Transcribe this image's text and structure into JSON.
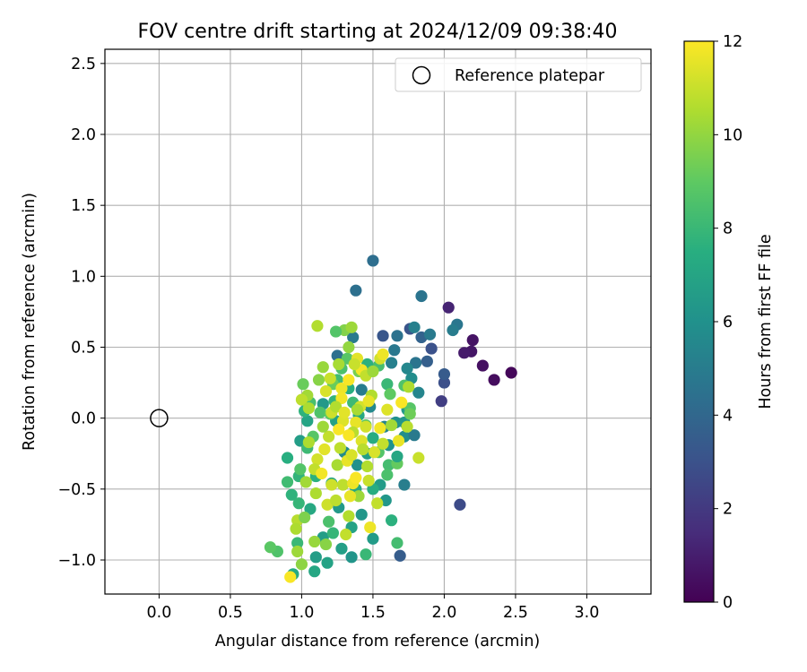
{
  "chart_data": {
    "type": "scatter",
    "title": "FOV centre drift starting at 2024/12/09 09:38:40",
    "xlabel": "Angular distance from reference (arcmin)",
    "ylabel": "Rotation from reference (arcmin)",
    "xlim": [
      -0.38,
      3.45
    ],
    "ylim": [
      -1.24,
      2.6
    ],
    "x_ticks": [
      0.0,
      0.5,
      1.0,
      1.5,
      2.0,
      2.5,
      3.0
    ],
    "x_tick_labels": [
      "0.0",
      "0.5",
      "1.0",
      "1.5",
      "2.0",
      "2.5",
      "3.0"
    ],
    "y_ticks": [
      -1.0,
      -0.5,
      0.0,
      0.5,
      1.0,
      1.5,
      2.0,
      2.5
    ],
    "y_tick_labels": [
      "−1.0",
      "−0.5",
      "0.0",
      "0.5",
      "1.0",
      "1.5",
      "2.0",
      "2.5"
    ],
    "grid": true,
    "legend": {
      "position": "upper right",
      "entries": [
        "Reference platepar"
      ]
    },
    "reference_point": {
      "x": 0.0,
      "y": 0.0,
      "marker": "open-circle"
    },
    "colorbar": {
      "label": "Hours from first FF file",
      "colormap": "viridis",
      "min": 0,
      "max": 12,
      "ticks": [
        0,
        2,
        4,
        6,
        8,
        10,
        12
      ],
      "tick_labels": [
        "0",
        "2",
        "4",
        "6",
        "8",
        "10",
        "12"
      ]
    },
    "points": [
      {
        "x": 2.47,
        "y": 0.32,
        "h": 0.2
      },
      {
        "x": 2.35,
        "y": 0.27,
        "h": 0.4
      },
      {
        "x": 2.27,
        "y": 0.37,
        "h": 0.5
      },
      {
        "x": 2.2,
        "y": 0.55,
        "h": 0.6
      },
      {
        "x": 2.19,
        "y": 0.47,
        "h": 0.7
      },
      {
        "x": 2.14,
        "y": 0.46,
        "h": 0.9
      },
      {
        "x": 2.03,
        "y": 0.78,
        "h": 1.2
      },
      {
        "x": 1.98,
        "y": 0.12,
        "h": 2.2
      },
      {
        "x": 2.11,
        "y": -0.61,
        "h": 2.7
      },
      {
        "x": 2.0,
        "y": 0.25,
        "h": 2.9
      },
      {
        "x": 1.91,
        "y": 0.49,
        "h": 3.0
      },
      {
        "x": 1.76,
        "y": 0.63,
        "h": 3.1
      },
      {
        "x": 1.57,
        "y": 0.58,
        "h": 3.2
      },
      {
        "x": 1.69,
        "y": -0.97,
        "h": 3.5
      },
      {
        "x": 2.0,
        "y": 0.31,
        "h": 3.4
      },
      {
        "x": 1.88,
        "y": 0.4,
        "h": 3.6
      },
      {
        "x": 1.84,
        "y": 0.57,
        "h": 3.8
      },
      {
        "x": 1.5,
        "y": 1.11,
        "h": 4.3
      },
      {
        "x": 1.38,
        "y": 0.9,
        "h": 4.4
      },
      {
        "x": 1.84,
        "y": 0.86,
        "h": 4.6
      },
      {
        "x": 2.09,
        "y": 0.66,
        "h": 4.7
      },
      {
        "x": 2.06,
        "y": 0.62,
        "h": 5.0
      },
      {
        "x": 1.9,
        "y": 0.59,
        "h": 4.9
      },
      {
        "x": 1.79,
        "y": 0.64,
        "h": 5.2
      },
      {
        "x": 1.67,
        "y": 0.58,
        "h": 4.5
      },
      {
        "x": 1.65,
        "y": 0.48,
        "h": 4.8
      },
      {
        "x": 1.63,
        "y": 0.39,
        "h": 5.2
      },
      {
        "x": 1.77,
        "y": 0.28,
        "h": 5.8
      },
      {
        "x": 1.8,
        "y": 0.39,
        "h": 4.6
      },
      {
        "x": 1.74,
        "y": 0.35,
        "h": 5.5
      },
      {
        "x": 1.36,
        "y": 0.57,
        "h": 4.9
      },
      {
        "x": 1.25,
        "y": 0.44,
        "h": 4.4
      },
      {
        "x": 1.42,
        "y": 0.2,
        "h": 5.0
      },
      {
        "x": 1.48,
        "y": 0.08,
        "h": 5.6
      },
      {
        "x": 1.58,
        "y": -0.06,
        "h": 5.3
      },
      {
        "x": 1.66,
        "y": -0.03,
        "h": 6.0
      },
      {
        "x": 1.72,
        "y": -0.13,
        "h": 5.8
      },
      {
        "x": 1.79,
        "y": -0.12,
        "h": 4.9
      },
      {
        "x": 1.72,
        "y": -0.03,
        "h": 6.2
      },
      {
        "x": 1.82,
        "y": 0.18,
        "h": 5.4
      },
      {
        "x": 1.74,
        "y": 0.06,
        "h": 6.4
      },
      {
        "x": 1.61,
        "y": -0.19,
        "h": 6.1
      },
      {
        "x": 1.55,
        "y": -0.47,
        "h": 6.5
      },
      {
        "x": 1.72,
        "y": -0.47,
        "h": 5.1
      },
      {
        "x": 1.59,
        "y": -0.58,
        "h": 6.3
      },
      {
        "x": 1.46,
        "y": -0.25,
        "h": 6.7
      },
      {
        "x": 1.39,
        "y": -0.33,
        "h": 6.0
      },
      {
        "x": 1.3,
        "y": -0.24,
        "h": 5.7
      },
      {
        "x": 1.24,
        "y": -0.02,
        "h": 6.8
      },
      {
        "x": 1.15,
        "y": 0.1,
        "h": 6.4
      },
      {
        "x": 1.04,
        "y": -0.02,
        "h": 7.0
      },
      {
        "x": 0.99,
        "y": -0.16,
        "h": 6.6
      },
      {
        "x": 1.35,
        "y": -0.77,
        "h": 6.9
      },
      {
        "x": 1.5,
        "y": -0.85,
        "h": 6.5
      },
      {
        "x": 1.35,
        "y": -0.98,
        "h": 6.2
      },
      {
        "x": 1.28,
        "y": -0.92,
        "h": 6.7
      },
      {
        "x": 1.09,
        "y": -1.08,
        "h": 7.1
      },
      {
        "x": 1.18,
        "y": -1.02,
        "h": 6.9
      },
      {
        "x": 1.1,
        "y": -0.98,
        "h": 6.6
      },
      {
        "x": 0.94,
        "y": -1.1,
        "h": 7.3
      },
      {
        "x": 1.15,
        "y": -0.84,
        "h": 6.6
      },
      {
        "x": 1.06,
        "y": -0.64,
        "h": 7.2
      },
      {
        "x": 1.26,
        "y": -0.63,
        "h": 6.4
      },
      {
        "x": 1.42,
        "y": -0.68,
        "h": 6.3
      },
      {
        "x": 1.5,
        "y": -0.5,
        "h": 7.4
      },
      {
        "x": 1.38,
        "y": -0.5,
        "h": 7.1
      },
      {
        "x": 1.21,
        "y": -0.46,
        "h": 7.0
      },
      {
        "x": 1.1,
        "y": -0.41,
        "h": 7.6
      },
      {
        "x": 0.98,
        "y": -0.41,
        "h": 7.8
      },
      {
        "x": 0.93,
        "y": -0.54,
        "h": 7.7
      },
      {
        "x": 0.98,
        "y": -0.6,
        "h": 7.9
      },
      {
        "x": 1.63,
        "y": -0.72,
        "h": 7.6
      },
      {
        "x": 1.67,
        "y": -0.88,
        "h": 8.3
      },
      {
        "x": 1.45,
        "y": -0.96,
        "h": 8.0
      },
      {
        "x": 1.22,
        "y": -0.81,
        "h": 7.9
      },
      {
        "x": 1.19,
        "y": -0.73,
        "h": 8.5
      },
      {
        "x": 0.97,
        "y": -0.88,
        "h": 8.0
      },
      {
        "x": 0.83,
        "y": -0.94,
        "h": 8.6
      },
      {
        "x": 0.78,
        "y": -0.91,
        "h": 8.9
      },
      {
        "x": 0.9,
        "y": -0.28,
        "h": 7.5
      },
      {
        "x": 0.9,
        "y": -0.45,
        "h": 8.2
      },
      {
        "x": 0.99,
        "y": -0.36,
        "h": 8.7
      },
      {
        "x": 1.04,
        "y": -0.21,
        "h": 8.1
      },
      {
        "x": 1.08,
        "y": -0.13,
        "h": 8.8
      },
      {
        "x": 1.06,
        "y": 0.11,
        "h": 8.4
      },
      {
        "x": 1.02,
        "y": 0.05,
        "h": 7.7
      },
      {
        "x": 1.13,
        "y": 0.04,
        "h": 8.6
      },
      {
        "x": 1.2,
        "y": 0.03,
        "h": 9.0
      },
      {
        "x": 1.23,
        "y": 0.12,
        "h": 7.8
      },
      {
        "x": 1.25,
        "y": 0.27,
        "h": 8.2
      },
      {
        "x": 1.28,
        "y": 0.35,
        "h": 8.5
      },
      {
        "x": 1.22,
        "y": 0.24,
        "h": 9.2
      },
      {
        "x": 1.33,
        "y": 0.21,
        "h": 7.5
      },
      {
        "x": 1.36,
        "y": 0.11,
        "h": 8.1
      },
      {
        "x": 1.4,
        "y": 0.02,
        "h": 7.2
      },
      {
        "x": 1.45,
        "y": -0.05,
        "h": 8.9
      },
      {
        "x": 1.5,
        "y": -0.14,
        "h": 7.4
      },
      {
        "x": 1.54,
        "y": -0.24,
        "h": 8.7
      },
      {
        "x": 1.61,
        "y": -0.33,
        "h": 8.3
      },
      {
        "x": 1.67,
        "y": -0.32,
        "h": 9.1
      },
      {
        "x": 1.6,
        "y": -0.4,
        "h": 8.5
      },
      {
        "x": 1.67,
        "y": -0.27,
        "h": 7.1
      },
      {
        "x": 1.76,
        "y": 0.07,
        "h": 8.8
      },
      {
        "x": 1.76,
        "y": 0.03,
        "h": 9.3
      },
      {
        "x": 1.72,
        "y": 0.23,
        "h": 8.6
      },
      {
        "x": 1.6,
        "y": 0.24,
        "h": 8.0
      },
      {
        "x": 1.62,
        "y": 0.17,
        "h": 9.0
      },
      {
        "x": 1.54,
        "y": 0.37,
        "h": 8.4
      },
      {
        "x": 1.46,
        "y": 0.38,
        "h": 7.6
      },
      {
        "x": 1.4,
        "y": 0.33,
        "h": 9.5
      },
      {
        "x": 1.32,
        "y": 0.42,
        "h": 8.8
      },
      {
        "x": 1.3,
        "y": 0.62,
        "h": 9.7
      },
      {
        "x": 1.24,
        "y": 0.61,
        "h": 8.7
      },
      {
        "x": 1.11,
        "y": 0.65,
        "h": 10.6
      },
      {
        "x": 1.35,
        "y": 0.64,
        "h": 10.2
      },
      {
        "x": 1.33,
        "y": 0.5,
        "h": 10.0
      },
      {
        "x": 1.26,
        "y": 0.38,
        "h": 10.4
      },
      {
        "x": 1.15,
        "y": 0.36,
        "h": 10.1
      },
      {
        "x": 1.12,
        "y": 0.27,
        "h": 9.8
      },
      {
        "x": 1.04,
        "y": 0.16,
        "h": 10.3
      },
      {
        "x": 1.01,
        "y": 0.24,
        "h": 9.2
      },
      {
        "x": 1.0,
        "y": 0.13,
        "h": 10.8
      },
      {
        "x": 1.05,
        "y": 0.07,
        "h": 10.5
      },
      {
        "x": 1.17,
        "y": 0.19,
        "h": 11.3
      },
      {
        "x": 1.21,
        "y": 0.04,
        "h": 11.1
      },
      {
        "x": 1.28,
        "y": 0.21,
        "h": 11.7
      },
      {
        "x": 1.33,
        "y": 0.27,
        "h": 11.9
      },
      {
        "x": 1.39,
        "y": 0.42,
        "h": 11.5
      },
      {
        "x": 1.42,
        "y": 0.34,
        "h": 11.8
      },
      {
        "x": 1.45,
        "y": 0.3,
        "h": 10.9
      },
      {
        "x": 1.49,
        "y": 0.16,
        "h": 10.6
      },
      {
        "x": 1.41,
        "y": 0.08,
        "h": 11.2
      },
      {
        "x": 1.38,
        "y": -0.03,
        "h": 11.6
      },
      {
        "x": 1.36,
        "y": -0.1,
        "h": 10.7
      },
      {
        "x": 1.29,
        "y": -0.02,
        "h": 11.4
      },
      {
        "x": 1.26,
        "y": -0.08,
        "h": 11.9
      },
      {
        "x": 1.19,
        "y": -0.13,
        "h": 10.9
      },
      {
        "x": 1.16,
        "y": -0.22,
        "h": 11.5
      },
      {
        "x": 1.11,
        "y": -0.29,
        "h": 11.2
      },
      {
        "x": 1.05,
        "y": -0.17,
        "h": 10.5
      },
      {
        "x": 1.09,
        "y": -0.36,
        "h": 10.9
      },
      {
        "x": 1.14,
        "y": -0.39,
        "h": 11.8
      },
      {
        "x": 1.21,
        "y": -0.47,
        "h": 11.1
      },
      {
        "x": 1.25,
        "y": -0.33,
        "h": 10.4
      },
      {
        "x": 1.32,
        "y": -0.3,
        "h": 11.6
      },
      {
        "x": 1.29,
        "y": -0.47,
        "h": 10.8
      },
      {
        "x": 1.36,
        "y": -0.46,
        "h": 11.7
      },
      {
        "x": 1.4,
        "y": -0.55,
        "h": 10.2
      },
      {
        "x": 1.47,
        "y": -0.44,
        "h": 11.0
      },
      {
        "x": 1.46,
        "y": -0.34,
        "h": 10.6
      },
      {
        "x": 1.51,
        "y": -0.24,
        "h": 11.3
      },
      {
        "x": 1.57,
        "y": -0.18,
        "h": 10.9
      },
      {
        "x": 1.55,
        "y": -0.07,
        "h": 11.8
      },
      {
        "x": 1.6,
        "y": 0.06,
        "h": 11.4
      },
      {
        "x": 1.63,
        "y": -0.05,
        "h": 10.3
      },
      {
        "x": 1.68,
        "y": -0.16,
        "h": 11.6
      },
      {
        "x": 1.74,
        "y": -0.06,
        "h": 10.7
      },
      {
        "x": 1.7,
        "y": 0.11,
        "h": 11.9
      },
      {
        "x": 1.75,
        "y": 0.22,
        "h": 10.5
      },
      {
        "x": 1.55,
        "y": 0.42,
        "h": 11.2
      },
      {
        "x": 1.57,
        "y": 0.45,
        "h": 11.7
      },
      {
        "x": 1.5,
        "y": 0.33,
        "h": 10.2
      },
      {
        "x": 1.37,
        "y": 0.38,
        "h": 11.0
      },
      {
        "x": 1.28,
        "y": 0.14,
        "h": 11.8
      },
      {
        "x": 1.24,
        "y": 0.08,
        "h": 10.6
      },
      {
        "x": 1.3,
        "y": 0.04,
        "h": 11.5
      },
      {
        "x": 1.33,
        "y": -0.12,
        "h": 11.9
      },
      {
        "x": 1.27,
        "y": -0.21,
        "h": 10.8
      },
      {
        "x": 1.42,
        "y": -0.16,
        "h": 11.4
      },
      {
        "x": 1.45,
        "y": -0.06,
        "h": 11.2
      },
      {
        "x": 1.39,
        "y": 0.06,
        "h": 10.4
      },
      {
        "x": 1.03,
        "y": -0.45,
        "h": 10.3
      },
      {
        "x": 0.97,
        "y": -0.72,
        "h": 10.7
      },
      {
        "x": 0.96,
        "y": -0.78,
        "h": 10.5
      },
      {
        "x": 1.02,
        "y": -0.7,
        "h": 9.6
      },
      {
        "x": 1.09,
        "y": -0.87,
        "h": 10.1
      },
      {
        "x": 1.17,
        "y": -0.89,
        "h": 9.8
      },
      {
        "x": 1.18,
        "y": -0.61,
        "h": 11.1
      },
      {
        "x": 1.24,
        "y": -0.58,
        "h": 10.8
      },
      {
        "x": 1.33,
        "y": -0.69,
        "h": 10.6
      },
      {
        "x": 1.31,
        "y": -0.82,
        "h": 10.9
      },
      {
        "x": 1.34,
        "y": -0.55,
        "h": 11.6
      },
      {
        "x": 1.38,
        "y": -0.42,
        "h": 11.9
      },
      {
        "x": 1.48,
        "y": -0.77,
        "h": 11.7
      },
      {
        "x": 1.53,
        "y": -0.6,
        "h": 10.9
      },
      {
        "x": 0.97,
        "y": -0.94,
        "h": 10.2
      },
      {
        "x": 1.0,
        "y": -1.03,
        "h": 9.9
      },
      {
        "x": 0.92,
        "y": -1.12,
        "h": 11.9
      },
      {
        "x": 1.82,
        "y": -0.28,
        "h": 11.0
      },
      {
        "x": 1.1,
        "y": -0.53,
        "h": 10.5
      },
      {
        "x": 1.15,
        "y": -0.06,
        "h": 10.2
      },
      {
        "x": 1.35,
        "y": -0.26,
        "h": 11.3
      },
      {
        "x": 1.43,
        "y": -0.22,
        "h": 10.7
      },
      {
        "x": 1.47,
        "y": 0.12,
        "h": 11.6
      },
      {
        "x": 1.2,
        "y": 0.28,
        "h": 11.0
      }
    ]
  }
}
